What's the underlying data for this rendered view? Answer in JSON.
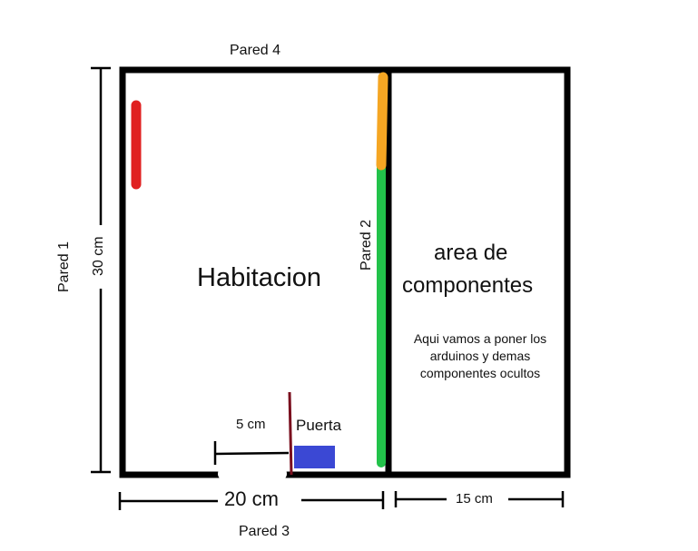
{
  "walls": {
    "pared1": "Pared 1",
    "pared2": "Pared 2",
    "pared3": "Pared 3",
    "pared4": "Pared 4"
  },
  "rooms": {
    "habitacion": "Habitacion",
    "area_line1": "area de",
    "area_line2": "componentes",
    "area_note": "Aqui vamos a poner los arduinos y demas componentes ocultos"
  },
  "dimensions": {
    "height": "30 cm",
    "width_room": "20  cm",
    "width_area": "15 cm",
    "door_offset": "5 cm"
  },
  "door": {
    "label": "Puerta"
  },
  "colors": {
    "wall": "#000000",
    "red_marker": "#e02020",
    "orange_marker": "#f5a623",
    "green_marker": "#22c24a",
    "door_line": "#7a0f1e",
    "blue_block": "#3b48d4"
  }
}
